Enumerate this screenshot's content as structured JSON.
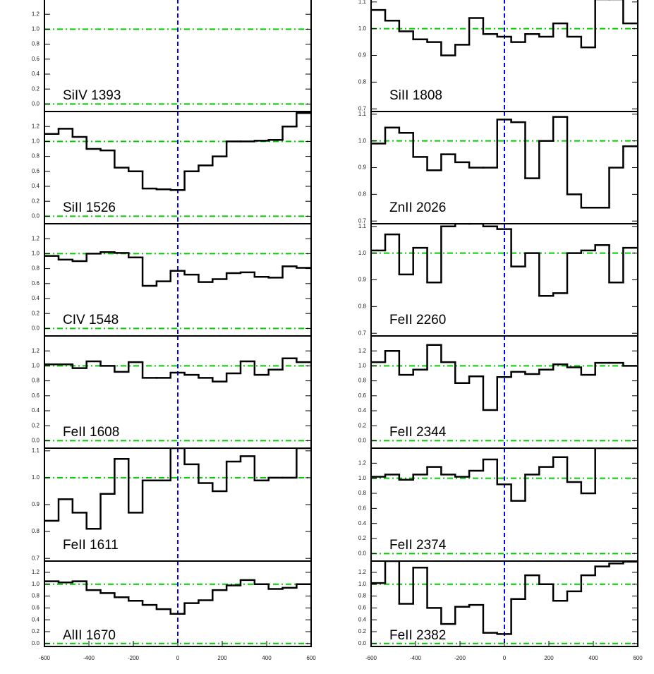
{
  "chart_data": [
    {
      "type": "step",
      "label": "SiIV 1393",
      "color": "#000000",
      "hline_color": "#00cc00",
      "vline_color": "#0000ff",
      "hlines": [
        0,
        1
      ],
      "vline": 0,
      "xlim": [
        -600,
        600
      ],
      "ylim": [
        -0.1,
        1.4
      ],
      "yticks": [
        {
          "value": 0,
          "label": "0.0"
        },
        0.2,
        0.4,
        0.6,
        0.8,
        {
          "value": 1,
          "label": "1.0"
        },
        1.2
      ]
    },
    {
      "type": "step",
      "label": "SiII 1526",
      "color": "#000000",
      "hline_color": "#00cc00",
      "vline_color": "#0000ff",
      "hlines": [
        0,
        1
      ],
      "vline": 0,
      "xlim": [
        -600,
        600
      ],
      "ylim": [
        -0.1,
        1.4
      ],
      "yticks": [
        {
          "value": 0,
          "label": "0.0"
        },
        0.2,
        0.4,
        0.6,
        0.8,
        {
          "value": 1,
          "label": "1.0"
        },
        1.2
      ],
      "x": [
        -568,
        -505,
        -442,
        -379,
        -316,
        -253,
        -190,
        -127,
        -64,
        -1,
        62,
        125,
        188,
        251,
        314,
        377,
        440,
        503,
        566
      ],
      "values": [
        1.1,
        1.17,
        1.06,
        0.9,
        0.88,
        0.65,
        0.6,
        0.37,
        0.36,
        0.35,
        0.6,
        0.68,
        0.8,
        1.0,
        1.0,
        1.01,
        1.02,
        1.2,
        1.38
      ]
    },
    {
      "type": "step",
      "label": "CIV 1548",
      "color": "#000000",
      "hline_color": "#00cc00",
      "vline_color": "#0000ff",
      "hlines": [
        0,
        1
      ],
      "vline": 0,
      "xlim": [
        -600,
        600
      ],
      "ylim": [
        -0.1,
        1.4
      ],
      "yticks": [
        {
          "value": 0,
          "label": "0.0"
        },
        0.2,
        0.4,
        0.6,
        0.8,
        {
          "value": 1,
          "label": "1.0"
        },
        1.2
      ],
      "x": [
        -568,
        -505,
        -442,
        -379,
        -316,
        -253,
        -190,
        -127,
        -64,
        -1,
        62,
        125,
        188,
        251,
        314,
        377,
        440,
        503,
        566
      ],
      "values": [
        0.97,
        0.92,
        0.9,
        1.0,
        1.02,
        1.01,
        0.95,
        0.57,
        0.63,
        0.77,
        0.72,
        0.62,
        0.66,
        0.74,
        0.75,
        0.69,
        0.68,
        0.83,
        0.81
      ]
    },
    {
      "type": "step",
      "label": "FeII 1608",
      "color": "#000000",
      "hline_color": "#00cc00",
      "vline_color": "#0000ff",
      "hlines": [
        0,
        1
      ],
      "vline": 0,
      "xlim": [
        -600,
        600
      ],
      "ylim": [
        -0.1,
        1.4
      ],
      "yticks": [
        {
          "value": 0,
          "label": "0.0"
        },
        0.2,
        0.4,
        0.6,
        0.8,
        {
          "value": 1,
          "label": "1.0"
        },
        1.2
      ],
      "x": [
        -568,
        -505,
        -442,
        -379,
        -316,
        -253,
        -190,
        -127,
        -64,
        -1,
        62,
        125,
        188,
        251,
        314,
        377,
        440,
        503,
        566
      ],
      "values": [
        1.02,
        1.02,
        0.97,
        1.06,
        1.0,
        0.92,
        1.05,
        0.84,
        0.84,
        0.91,
        0.88,
        0.84,
        0.79,
        0.9,
        1.06,
        0.88,
        0.95,
        1.1,
        1.05
      ]
    },
    {
      "type": "step",
      "label": "FeII 1611",
      "color": "#000000",
      "hline_color": "#00cc00",
      "vline_color": "#0000ff",
      "hlines": [
        1
      ],
      "vline": 0,
      "xlim": [
        -600,
        600
      ],
      "ylim": [
        0.69,
        1.11
      ],
      "yticks": [
        0.7,
        0.8,
        0.9,
        {
          "value": 1,
          "label": "1.0"
        },
        1.1
      ],
      "x": [
        -568,
        -505,
        -442,
        -379,
        -316,
        -253,
        -190,
        -127,
        -64,
        -1,
        62,
        125,
        188,
        251,
        314,
        377,
        440,
        503,
        566
      ],
      "values": [
        0.84,
        0.92,
        0.87,
        0.81,
        0.94,
        1.07,
        0.87,
        0.99,
        0.99,
        1.11,
        1.05,
        0.98,
        0.95,
        1.06,
        1.08,
        0.99,
        1.0,
        1.0,
        1.11
      ]
    },
    {
      "type": "step",
      "label": "AlII 1670",
      "color": "#000000",
      "hline_color": "#00cc00",
      "vline_color": "#0000ff",
      "hlines": [
        0,
        1
      ],
      "vline": 0,
      "xlim": [
        -600,
        600
      ],
      "ylim": [
        -0.05,
        1.39
      ],
      "yticks": [
        {
          "value": 0,
          "label": "0.0"
        },
        0.2,
        0.4,
        0.6,
        0.8,
        {
          "value": 1,
          "label": "1.0"
        },
        1.2
      ],
      "xticks": [
        -600,
        -400,
        -200,
        0,
        200,
        400,
        600
      ],
      "x": [
        -568,
        -505,
        -442,
        -379,
        -316,
        -253,
        -190,
        -127,
        -64,
        -1,
        62,
        125,
        188,
        251,
        314,
        377,
        440,
        503,
        566
      ],
      "values": [
        1.05,
        1.03,
        1.05,
        0.9,
        0.85,
        0.78,
        0.72,
        0.65,
        0.58,
        0.5,
        0.68,
        0.73,
        0.9,
        0.98,
        1.07,
        1.0,
        0.92,
        0.94,
        1.0
      ]
    },
    {
      "type": "step",
      "label": "SiII 1808",
      "color": "#000000",
      "hline_color": "#00cc00",
      "vline_color": "#0000ff",
      "hlines": [
        1
      ],
      "vline": 0,
      "xlim": [
        -600,
        600
      ],
      "ylim": [
        0.69,
        1.11
      ],
      "yticks": [
        0.7,
        0.8,
        0.9,
        {
          "value": 1,
          "label": "1.0"
        },
        1.1
      ],
      "x": [
        -568,
        -505,
        -442,
        -379,
        -316,
        -253,
        -190,
        -127,
        -64,
        -1,
        62,
        125,
        188,
        251,
        314,
        377,
        440,
        503,
        566
      ],
      "values": [
        1.07,
        1.03,
        0.99,
        0.96,
        0.95,
        0.9,
        0.94,
        1.04,
        0.98,
        0.97,
        0.95,
        0.98,
        0.97,
        1.02,
        0.97,
        0.93,
        1.11,
        1.11,
        1.02
      ]
    },
    {
      "type": "step",
      "label": "ZnII 2026",
      "color": "#000000",
      "hline_color": "#00cc00",
      "vline_color": "#0000ff",
      "hlines": [
        1
      ],
      "vline": 0,
      "xlim": [
        -600,
        600
      ],
      "ylim": [
        0.69,
        1.11
      ],
      "yticks": [
        0.7,
        0.8,
        0.9,
        {
          "value": 1,
          "label": "1.0"
        },
        1.1
      ],
      "x": [
        -568,
        -505,
        -442,
        -379,
        -316,
        -253,
        -190,
        -127,
        -64,
        -1,
        62,
        125,
        188,
        251,
        314,
        377,
        440,
        503,
        566
      ],
      "values": [
        0.99,
        1.05,
        1.03,
        0.94,
        0.89,
        0.95,
        0.92,
        0.9,
        0.9,
        1.08,
        1.07,
        0.86,
        1.0,
        1.09,
        0.8,
        0.75,
        0.75,
        0.9,
        0.98
      ]
    },
    {
      "type": "step",
      "label": "FeII 2260",
      "color": "#000000",
      "hline_color": "#00cc00",
      "vline_color": "#0000ff",
      "hlines": [
        1
      ],
      "vline": 0,
      "xlim": [
        -600,
        600
      ],
      "ylim": [
        0.69,
        1.11
      ],
      "yticks": [
        0.7,
        0.8,
        0.9,
        {
          "value": 1,
          "label": "1.0"
        },
        1.1
      ],
      "x": [
        -568,
        -505,
        -442,
        -379,
        -316,
        -253,
        -190,
        -127,
        -64,
        -1,
        62,
        125,
        188,
        251,
        314,
        377,
        440,
        503,
        566
      ],
      "values": [
        1.01,
        1.07,
        0.92,
        1.02,
        0.89,
        1.1,
        1.11,
        1.11,
        1.1,
        1.09,
        0.95,
        1.0,
        0.84,
        0.85,
        1.0,
        1.01,
        1.03,
        0.89,
        1.02
      ]
    },
    {
      "type": "step",
      "label": "FeII 2344",
      "color": "#000000",
      "hline_color": "#00cc00",
      "vline_color": "#0000ff",
      "hlines": [
        0,
        1
      ],
      "vline": 0,
      "xlim": [
        -600,
        600
      ],
      "ylim": [
        -0.1,
        1.4
      ],
      "yticks": [
        {
          "value": 0,
          "label": "0.0"
        },
        0.2,
        0.4,
        0.6,
        0.8,
        {
          "value": 1,
          "label": "1.0"
        },
        1.2
      ],
      "x": [
        -568,
        -505,
        -442,
        -379,
        -316,
        -253,
        -190,
        -127,
        -64,
        -1,
        62,
        125,
        188,
        251,
        314,
        377,
        440,
        503,
        566
      ],
      "values": [
        1.05,
        1.2,
        0.88,
        0.95,
        1.28,
        1.05,
        0.77,
        0.86,
        0.41,
        0.85,
        0.92,
        0.89,
        0.95,
        1.02,
        0.98,
        0.88,
        1.04,
        1.04,
        1.0
      ]
    },
    {
      "type": "step",
      "label": "FeII 2374",
      "color": "#000000",
      "hline_color": "#00cc00",
      "vline_color": "#0000ff",
      "hlines": [
        0,
        1
      ],
      "vline": 0,
      "xlim": [
        -600,
        600
      ],
      "ylim": [
        -0.1,
        1.4
      ],
      "yticks": [
        {
          "value": 0,
          "label": "0.0"
        },
        0.2,
        0.4,
        0.6,
        0.8,
        {
          "value": 1,
          "label": "1.0"
        },
        1.2
      ],
      "x": [
        -568,
        -505,
        -442,
        -379,
        -316,
        -253,
        -190,
        -127,
        -64,
        -1,
        62,
        125,
        188,
        251,
        314,
        377,
        440,
        503,
        566
      ],
      "values": [
        1.02,
        1.05,
        0.98,
        1.05,
        1.15,
        1.05,
        1.02,
        1.1,
        1.25,
        0.92,
        0.7,
        1.05,
        1.15,
        1.28,
        0.95,
        0.8,
        1.4,
        1.4,
        1.4
      ]
    },
    {
      "type": "step",
      "label": "FeII 2382",
      "color": "#000000",
      "hline_color": "#00cc00",
      "vline_color": "#0000ff",
      "hlines": [
        0,
        1
      ],
      "vline": 0,
      "xlim": [
        -600,
        600
      ],
      "ylim": [
        -0.05,
        1.39
      ],
      "yticks": [
        {
          "value": 0,
          "label": "0.0"
        },
        0.2,
        0.4,
        0.6,
        0.8,
        {
          "value": 1,
          "label": "1.0"
        },
        1.2
      ],
      "xticks": [
        -600,
        -400,
        -200,
        0,
        200,
        400,
        600
      ],
      "x": [
        -568,
        -505,
        -442,
        -379,
        -316,
        -253,
        -190,
        -127,
        -64,
        -1,
        62,
        125,
        188,
        251,
        314,
        377,
        440,
        503,
        566
      ],
      "values": [
        1.02,
        1.39,
        0.67,
        1.28,
        0.6,
        0.33,
        0.62,
        0.65,
        0.18,
        0.16,
        0.75,
        1.15,
        1.0,
        0.72,
        0.88,
        1.15,
        1.3,
        1.35,
        1.38
      ]
    }
  ]
}
